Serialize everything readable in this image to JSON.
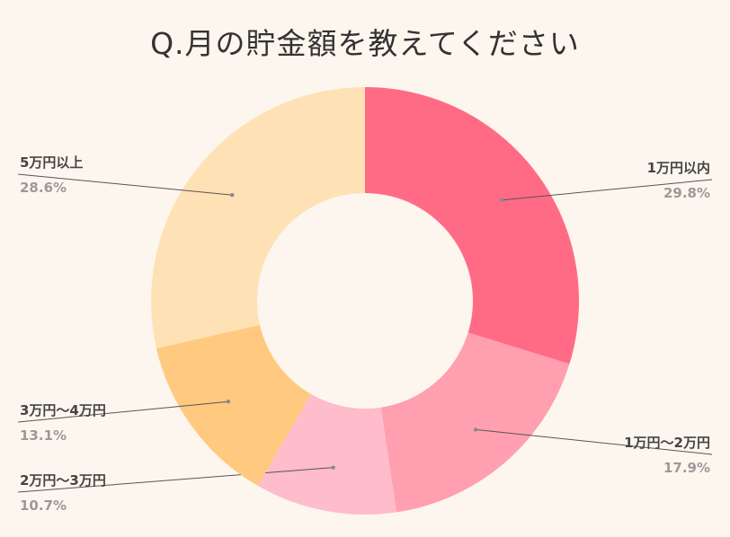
{
  "chart_data": {
    "type": "pie",
    "title": "Q.月の貯金額を教えてください",
    "categories": [
      "1万円以内",
      "1万円～2万円",
      "2万円～3万円",
      "3万円～4万円",
      "5万円以上"
    ],
    "values": [
      29.8,
      17.9,
      10.7,
      13.1,
      28.6
    ],
    "value_labels": [
      "29.8%",
      "17.9%",
      "10.7%",
      "13.1%",
      "28.6%"
    ],
    "colors": [
      "#ff6b85",
      "#ff9fb0",
      "#ffbccb",
      "#ffca80",
      "#ffe1b6"
    ],
    "donut": true
  }
}
